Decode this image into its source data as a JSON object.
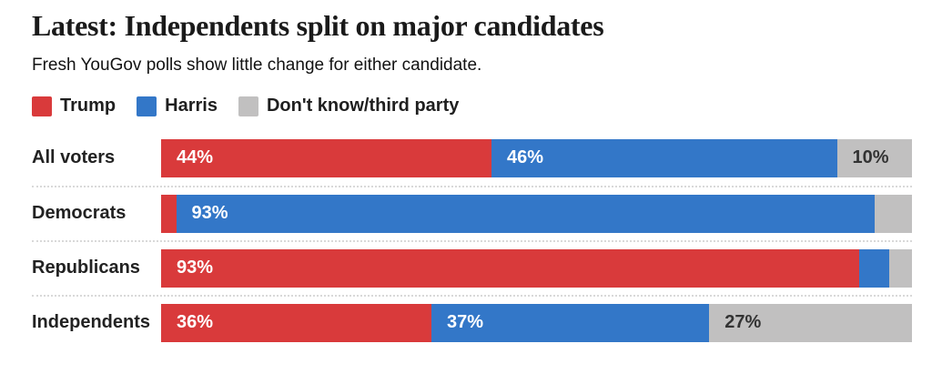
{
  "header": {
    "title": "Latest: Independents split on major candidates",
    "subtitle": "Fresh YouGov polls show little change for either candidate."
  },
  "chart_data": {
    "type": "bar",
    "stacked": true,
    "orientation": "horizontal",
    "title": "Latest: Independents split on major candidates",
    "subtitle": "Fresh YouGov polls show little change for either candidate.",
    "categories": [
      "All voters",
      "Democrats",
      "Republicans",
      "Independents"
    ],
    "series": [
      {
        "key": "trump",
        "name": "Trump",
        "color": "#d93a3b",
        "label_text_color": "#ffffff",
        "values": [
          44,
          2,
          93,
          36
        ]
      },
      {
        "key": "harris",
        "name": "Harris",
        "color": "#3377c8",
        "label_text_color": "#ffffff",
        "values": [
          46,
          93,
          4,
          37
        ]
      },
      {
        "key": "dont-know-third-party",
        "name": "Don't know/third party",
        "color": "#c1c0c0",
        "label_text_color": "#333333",
        "values": [
          10,
          5,
          3,
          27
        ]
      }
    ],
    "segment_labels": [
      [
        "44%",
        "46%",
        "10%"
      ],
      [
        "",
        "93%",
        ""
      ],
      [
        "93%",
        "",
        ""
      ],
      [
        "36%",
        "37%",
        "27%"
      ]
    ],
    "xlim": [
      0,
      100
    ],
    "legend_position": "top",
    "grid": false,
    "row_separator_style": "dotted",
    "row_separator_color": "#d9d9d9"
  }
}
